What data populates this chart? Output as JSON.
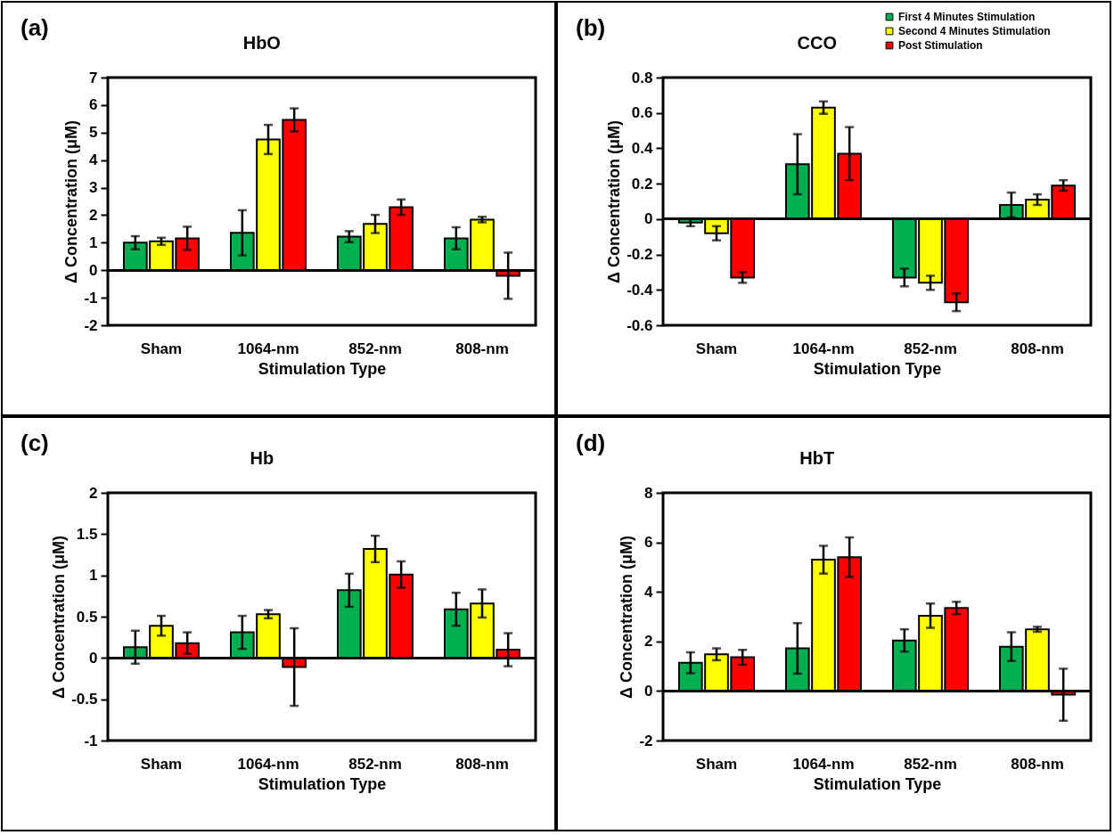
{
  "chart_data": [
    {
      "type": "bar",
      "title": "HbO",
      "xlabel": "Stimulation Type",
      "ylabel": "Δ Concentration (μM)",
      "annotations": [
        "(a)"
      ],
      "categories": [
        "Sham",
        "1064-nm",
        "852-nm",
        "808-nm"
      ],
      "ylim": [
        -2,
        7
      ],
      "yticks": [
        -2,
        -1,
        0,
        1,
        2,
        3,
        4,
        5,
        6,
        7
      ],
      "legend": false,
      "series": [
        {
          "color": "#00b050",
          "values": [
            1.0,
            1.36,
            1.22,
            1.16
          ],
          "errors": [
            0.24,
            0.82,
            0.2,
            0.4
          ]
        },
        {
          "color": "#ffff00",
          "values": [
            1.05,
            4.75,
            1.68,
            1.84
          ],
          "errors": [
            0.13,
            0.53,
            0.33,
            0.1
          ]
        },
        {
          "color": "#ff0000",
          "values": [
            1.16,
            5.46,
            2.29,
            -0.2
          ],
          "errors": [
            0.42,
            0.42,
            0.28,
            0.84
          ]
        }
      ]
    },
    {
      "type": "bar",
      "title": "CCO",
      "xlabel": "Stimulation Type",
      "ylabel": "Δ Concentration (μM)",
      "annotations": [
        "(b)"
      ],
      "categories": [
        "Sham",
        "1064-nm",
        "852-nm",
        "808-nm"
      ],
      "ylim": [
        -0.6,
        0.8
      ],
      "yticks": [
        -0.6,
        -0.4,
        -0.2,
        0,
        0.2,
        0.4,
        0.6,
        0.8
      ],
      "legend": "top right",
      "series": [
        {
          "name": "First 4 Minutes Stimulation",
          "color": "#00b050",
          "values": [
            -0.02,
            0.31,
            -0.33,
            0.08
          ],
          "errors": [
            0.02,
            0.17,
            0.05,
            0.07
          ]
        },
        {
          "name": "Second 4 Minutes Stimulation",
          "color": "#ffff00",
          "values": [
            -0.08,
            0.63,
            -0.36,
            0.11
          ],
          "errors": [
            0.04,
            0.035,
            0.04,
            0.03
          ]
        },
        {
          "name": "Post Stimulation",
          "color": "#ff0000",
          "values": [
            -0.33,
            0.37,
            -0.47,
            0.19
          ],
          "errors": [
            0.03,
            0.15,
            0.05,
            0.03
          ]
        }
      ]
    },
    {
      "type": "bar",
      "title": "Hb",
      "xlabel": "Stimulation Type",
      "ylabel": "Δ Concentration (μM)",
      "annotations": [
        "(c)"
      ],
      "categories": [
        "Sham",
        "1064-nm",
        "852-nm",
        "808-nm"
      ],
      "ylim": [
        -1,
        2
      ],
      "yticks": [
        -1,
        -0.5,
        0,
        0.5,
        1,
        1.5,
        2
      ],
      "legend": false,
      "series": [
        {
          "color": "#00b050",
          "values": [
            0.13,
            0.31,
            0.82,
            0.59
          ],
          "errors": [
            0.2,
            0.2,
            0.2,
            0.2
          ]
        },
        {
          "color": "#ffff00",
          "values": [
            0.39,
            0.53,
            1.32,
            0.66
          ],
          "errors": [
            0.12,
            0.05,
            0.16,
            0.17
          ]
        },
        {
          "color": "#ff0000",
          "values": [
            0.18,
            -0.11,
            1.01,
            0.1
          ],
          "errors": [
            0.13,
            0.47,
            0.16,
            0.2
          ]
        }
      ]
    },
    {
      "type": "bar",
      "title": "HbT",
      "xlabel": "Stimulation Type",
      "ylabel": "Δ Concentration (μM)",
      "annotations": [
        "(d)"
      ],
      "categories": [
        "Sham",
        "1064-nm",
        "852-nm",
        "808-nm"
      ],
      "ylim": [
        -2,
        8
      ],
      "yticks": [
        -2,
        0,
        2,
        4,
        6,
        8
      ],
      "legend": false,
      "series": [
        {
          "color": "#00b050",
          "values": [
            1.14,
            1.72,
            2.04,
            1.79
          ],
          "errors": [
            0.42,
            1.02,
            0.45,
            0.58
          ]
        },
        {
          "color": "#ffff00",
          "values": [
            1.48,
            5.3,
            3.04,
            2.49
          ],
          "errors": [
            0.24,
            0.56,
            0.49,
            0.1
          ]
        },
        {
          "color": "#ff0000",
          "values": [
            1.36,
            5.4,
            3.35,
            -0.15
          ],
          "errors": [
            0.3,
            0.8,
            0.25,
            1.05
          ]
        }
      ]
    }
  ]
}
